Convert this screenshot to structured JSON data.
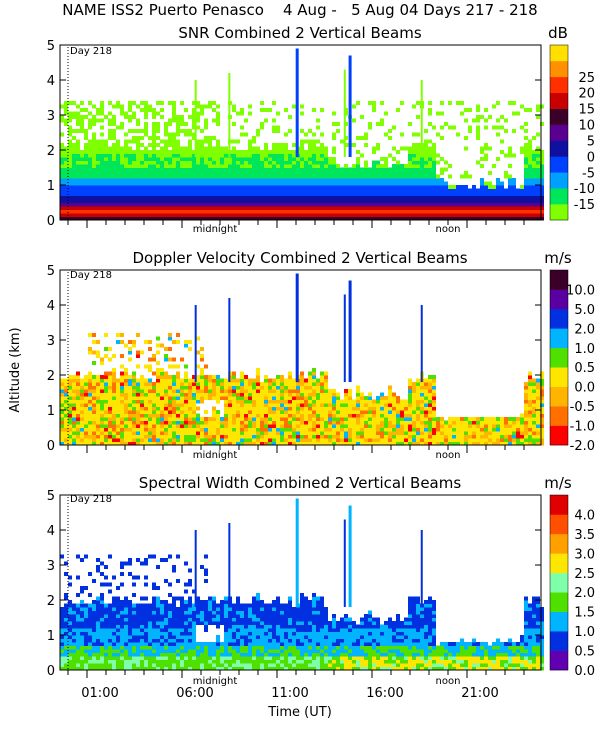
{
  "figure_title": "NAME ISS2 Puerto Penasco    4 Aug -   5 Aug 04 Days 217 - 218",
  "colors": {
    "snr": [
      "#80ff00",
      "#00e65a",
      "#00a0ff",
      "#0040ff",
      "#1010a0",
      "#5a0090",
      "#3a0028",
      "#c80000",
      "#ff3000",
      "#ff9000",
      "#ffe000"
    ],
    "doppler": [
      "#ff0000",
      "#ff7000",
      "#ffb400",
      "#ffe600",
      "#50e000",
      "#00b4ff",
      "#0030e0",
      "#5a00a0",
      "#3a0028"
    ],
    "width": [
      "#6000b0",
      "#0030e0",
      "#00b4ff",
      "#50e000",
      "#80ffaa",
      "#ffe600",
      "#ffa000",
      "#ff5000",
      "#e00000"
    ]
  },
  "chart_data": [
    {
      "type": "heatmap",
      "title": "SNR Combined 2 Vertical Beams",
      "unit": "dB",
      "ylabel": "",
      "ylim": [
        0,
        5
      ],
      "yticks": [
        "0",
        "1",
        "2",
        "3",
        "4",
        "5"
      ],
      "colorbar_labels": [
        "-15",
        "-10",
        "-5",
        "0",
        "5",
        "10",
        "15",
        "20",
        "25"
      ],
      "day_label": "Day 218",
      "annotations": [
        "midnight",
        "noon"
      ]
    },
    {
      "type": "heatmap",
      "title": "Doppler Velocity Combined 2 Vertical Beams",
      "unit": "m/s",
      "ylabel": "Altitude (km)",
      "ylim": [
        0,
        5
      ],
      "yticks": [
        "0",
        "1",
        "2",
        "3",
        "4",
        "5"
      ],
      "colorbar_labels": [
        "-2.0",
        "-1.0",
        "-0.5",
        "0.0",
        "0.5",
        "1.0",
        "2.0",
        "5.0",
        "10.0"
      ],
      "day_label": "Day 218",
      "annotations": [
        "midnight",
        "noon"
      ]
    },
    {
      "type": "heatmap",
      "title": "Spectral Width Combined 2 Vertical Beams",
      "unit": "m/s",
      "ylabel": "",
      "ylim": [
        0,
        5
      ],
      "yticks": [
        "0",
        "1",
        "2",
        "3",
        "4",
        "5"
      ],
      "colorbar_labels": [
        "0.0",
        "0.5",
        "1.0",
        "1.5",
        "2.0",
        "2.5",
        "3.0",
        "3.5",
        "4.0"
      ],
      "day_label": "Day 218",
      "annotations": [
        "midnight",
        "noon"
      ],
      "xlabel": "Time (UT)",
      "xtick_labels": [
        "01:00",
        "06:00",
        "11:00",
        "16:00",
        "21:00"
      ]
    }
  ]
}
